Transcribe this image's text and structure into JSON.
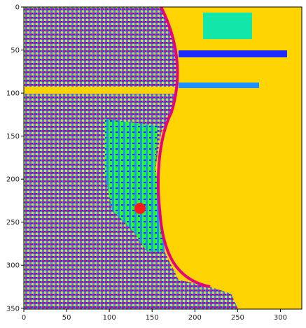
{
  "image": {
    "description_free": true,
    "colormap": [
      "#ffd400",
      "#1e2bff",
      "#1e90ff",
      "#e6007e",
      "#ff1a1a",
      "#2bff2b",
      "#12e6a8",
      "#b000ff"
    ],
    "water_color": "#ffd400"
  },
  "axes": {
    "xlim": [
      0,
      325
    ],
    "ylim": [
      351,
      0
    ],
    "xticks": [
      0,
      50,
      100,
      150,
      200,
      250,
      300
    ],
    "yticks": [
      0,
      50,
      100,
      150,
      200,
      250,
      300,
      350
    ]
  }
}
